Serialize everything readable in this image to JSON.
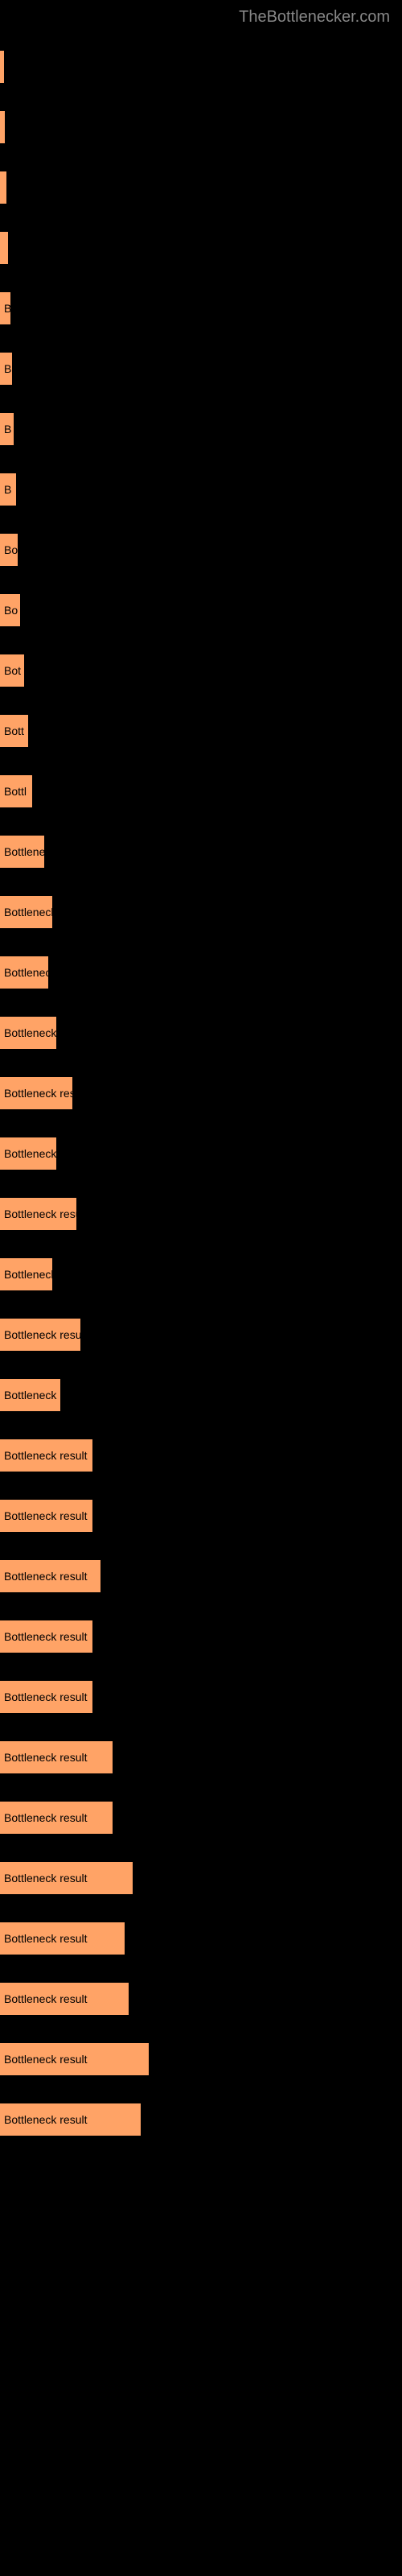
{
  "header": {
    "siteName": "TheBottlenecker.com"
  },
  "chart": {
    "barColor": "#ffa366",
    "backgroundColor": "#000000",
    "textColor": "#000000",
    "headerColor": "#888888",
    "barHeight": 40,
    "barSpacing": 35,
    "maxWidth": 200,
    "bars": [
      {
        "width": 4,
        "label": ""
      },
      {
        "width": 6,
        "label": ""
      },
      {
        "width": 8,
        "label": ""
      },
      {
        "width": 10,
        "label": ""
      },
      {
        "width": 13,
        "label": "B"
      },
      {
        "width": 15,
        "label": "B"
      },
      {
        "width": 17,
        "label": "B"
      },
      {
        "width": 20,
        "label": "B"
      },
      {
        "width": 22,
        "label": "Bo"
      },
      {
        "width": 25,
        "label": "Bo"
      },
      {
        "width": 30,
        "label": "Bot"
      },
      {
        "width": 35,
        "label": "Bott"
      },
      {
        "width": 40,
        "label": "Bottl"
      },
      {
        "width": 55,
        "label": "Bottlenec"
      },
      {
        "width": 65,
        "label": "Bottleneck res"
      },
      {
        "width": 60,
        "label": "Bottleneck"
      },
      {
        "width": 70,
        "label": "Bottleneck resu"
      },
      {
        "width": 90,
        "label": "Bottleneck result"
      },
      {
        "width": 70,
        "label": "Bottleneck resu"
      },
      {
        "width": 95,
        "label": "Bottleneck result"
      },
      {
        "width": 65,
        "label": "Bottleneck re"
      },
      {
        "width": 100,
        "label": "Bottleneck result"
      },
      {
        "width": 75,
        "label": "Bottleneck resu"
      },
      {
        "width": 115,
        "label": "Bottleneck result"
      },
      {
        "width": 115,
        "label": "Bottleneck result"
      },
      {
        "width": 125,
        "label": "Bottleneck result"
      },
      {
        "width": 115,
        "label": "Bottleneck result"
      },
      {
        "width": 115,
        "label": "Bottleneck result"
      },
      {
        "width": 140,
        "label": "Bottleneck result"
      },
      {
        "width": 140,
        "label": "Bottleneck result"
      },
      {
        "width": 165,
        "label": "Bottleneck result"
      },
      {
        "width": 155,
        "label": "Bottleneck result"
      },
      {
        "width": 160,
        "label": "Bottleneck result"
      },
      {
        "width": 185,
        "label": "Bottleneck result"
      },
      {
        "width": 175,
        "label": "Bottleneck result"
      }
    ]
  }
}
